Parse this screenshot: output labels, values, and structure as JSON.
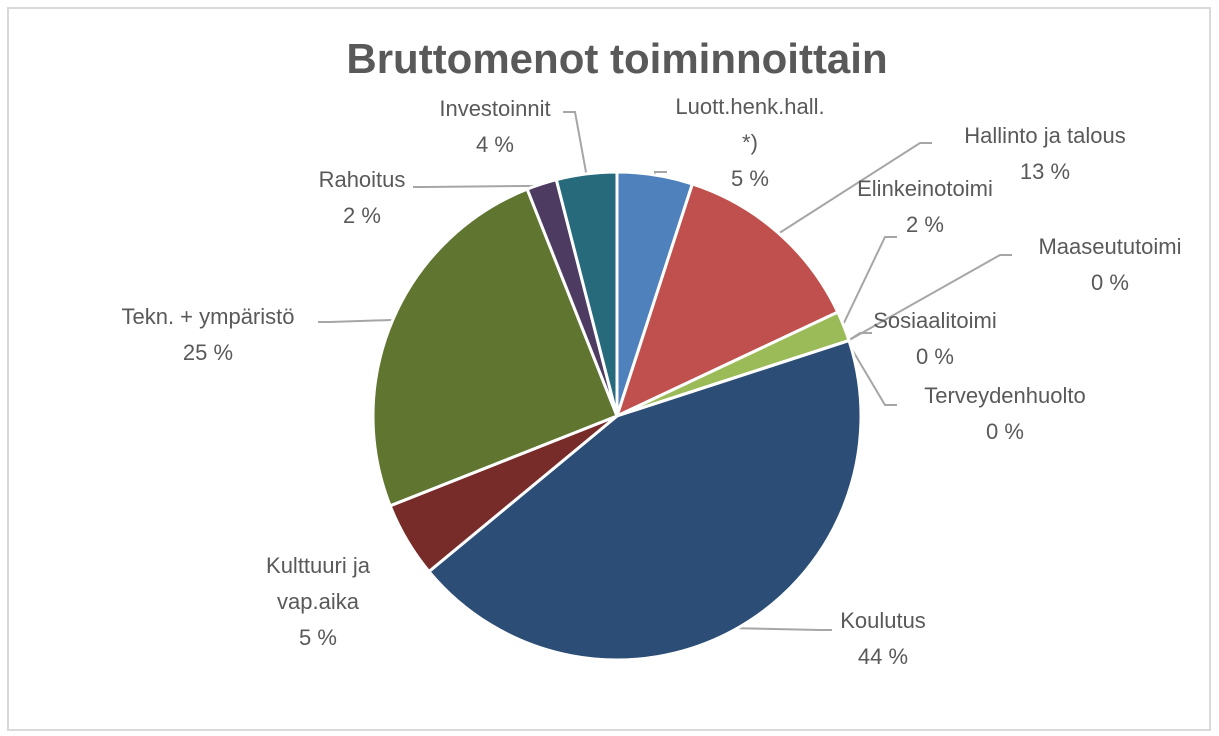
{
  "chart_data": {
    "type": "pie",
    "title": "Bruttomenot toiminnoittain",
    "categories": [
      "Luott.henk.hall.\n*)",
      "Hallinto ja talous",
      "Elinkeinotoimi",
      "Maaseututoimi",
      "Sosiaalitoimi",
      "Terveydenhuolto",
      "Koulutus",
      "Kulttuuri ja\nvap.aika",
      "Tekn. + ympäristö",
      "Rahoitus",
      "Investoinnit"
    ],
    "values": [
      5,
      13,
      2,
      0,
      0,
      0,
      44,
      5,
      25,
      2,
      4
    ],
    "value_labels": [
      "5 %",
      "13 %",
      "2 %",
      "0 %",
      "0 %",
      "0 %",
      "44 %",
      "5 %",
      "25 %",
      "2 %",
      "4 %"
    ],
    "colors": [
      "#4f81bd",
      "#c0504d",
      "#9bbb59",
      "#8064a2",
      "#4bacc6",
      "#f79646",
      "#2c4d75",
      "#772c2a",
      "#5f7530",
      "#4d3b62",
      "#276a7c"
    ]
  }
}
